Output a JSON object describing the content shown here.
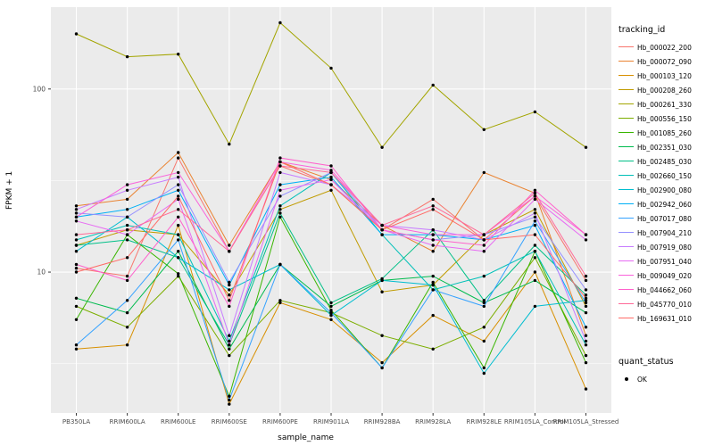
{
  "chart_data": {
    "type": "line",
    "title": "",
    "xlabel": "sample_name",
    "ylabel": "FPKM + 1",
    "y_scale": "log10",
    "y_ticks": [
      10,
      100
    ],
    "ylim": [
      1.7,
      280
    ],
    "panel_bg": "#EBEBEB",
    "grid_color": "#FFFFFF",
    "point_color": "#000000",
    "categories": [
      "PB350LA",
      "RRIM600LA",
      "RRIM600LE",
      "RRIM600SE",
      "RRIM600PE",
      "RRIM901LA",
      "RRIM928BA",
      "RRIM928LA",
      "RRIM928LE",
      "RRIM105LA_Control",
      "RRIM105LA_Stressed"
    ],
    "legend": {
      "title": "tracking_id",
      "position": "right"
    },
    "quant_legend": {
      "title": "quant_status",
      "items": [
        {
          "label": "OK",
          "marker": "black-point"
        }
      ]
    },
    "series": [
      {
        "name": "Hb_000022_200",
        "color": "#F8766D",
        "values": [
          10.5,
          9.5,
          42,
          13,
          38,
          30,
          17,
          25,
          15,
          26,
          9
        ]
      },
      {
        "name": "Hb_000072_090",
        "color": "#EA8331",
        "values": [
          23,
          25,
          45,
          14,
          40,
          32,
          18,
          13,
          35,
          27,
          4.5
        ]
      },
      {
        "name": "Hb_000103_120",
        "color": "#D89000",
        "values": [
          3.8,
          4.0,
          18,
          1.9,
          6.8,
          5.5,
          3.2,
          5.8,
          4.2,
          10,
          2.3
        ]
      },
      {
        "name": "Hb_000208_260",
        "color": "#C09B00",
        "values": [
          14,
          17,
          16,
          7.5,
          22,
          28,
          7.8,
          8.5,
          16,
          22,
          6.5
        ]
      },
      {
        "name": "Hb_000261_330",
        "color": "#A3A500",
        "values": [
          200,
          150,
          155,
          50,
          230,
          130,
          48,
          105,
          60,
          75,
          48
        ]
      },
      {
        "name": "Hb_000556_150",
        "color": "#7CAE00",
        "values": [
          6.5,
          5.0,
          9.5,
          3.5,
          7.0,
          6.0,
          4.5,
          3.8,
          5.0,
          12,
          3.5
        ]
      },
      {
        "name": "Hb_001085_260",
        "color": "#39B600",
        "values": [
          5.5,
          16,
          9.8,
          2.1,
          20,
          6.2,
          3.0,
          8.8,
          3.0,
          13,
          3.2
        ]
      },
      {
        "name": "Hb_002351_030",
        "color": "#00BB4E",
        "values": [
          7.2,
          6.0,
          13,
          3.8,
          11,
          6.5,
          9.0,
          9.5,
          6.8,
          9.0,
          6.0
        ]
      },
      {
        "name": "Hb_002485_030",
        "color": "#00C087",
        "values": [
          14,
          15,
          12,
          4.0,
          21,
          6.8,
          9.2,
          17,
          7.0,
          14,
          7.5
        ]
      },
      {
        "name": "Hb_002660_150",
        "color": "#00C0B8",
        "values": [
          15,
          18,
          16,
          4.2,
          23,
          35,
          16,
          8.0,
          9.5,
          13,
          4.0
        ]
      },
      {
        "name": "Hb_002900_080",
        "color": "#00BDD0",
        "values": [
          13,
          20,
          12,
          8.0,
          11,
          5.8,
          9.0,
          8.5,
          2.8,
          6.5,
          7.0
        ]
      },
      {
        "name": "Hb_002942_060",
        "color": "#00B0F6",
        "values": [
          20,
          22,
          28,
          8.5,
          30,
          33,
          16,
          16,
          15,
          18,
          5.0
        ]
      },
      {
        "name": "Hb_007017_080",
        "color": "#35A2FF",
        "values": [
          4.0,
          7.0,
          15,
          2.0,
          11,
          6.0,
          3.0,
          8.0,
          6.5,
          19,
          6.8
        ]
      },
      {
        "name": "Hb_007904_210",
        "color": "#9590FF",
        "values": [
          21,
          20,
          30,
          8.8,
          26,
          35,
          17,
          15,
          16,
          20,
          8.0
        ]
      },
      {
        "name": "Hb_007919_080",
        "color": "#C77CFF",
        "values": [
          22,
          28,
          33,
          4.5,
          35,
          30,
          18,
          17,
          15,
          21,
          4.2
        ]
      },
      {
        "name": "Hb_007951_040",
        "color": "#E76BF3",
        "values": [
          19,
          16,
          25,
          4.0,
          28,
          32,
          17,
          14,
          13,
          25,
          15
        ]
      },
      {
        "name": "Hb_009049_020",
        "color": "#FA62DB",
        "values": [
          20,
          30,
          35,
          13,
          40,
          36,
          18,
          16,
          16,
          26,
          16
        ]
      },
      {
        "name": "Hb_044662_060",
        "color": "#FF61CC",
        "values": [
          11,
          9.0,
          20,
          6.5,
          42,
          38,
          17,
          15,
          14,
          28,
          16
        ]
      },
      {
        "name": "Hb_045770_010",
        "color": "#FF6A98",
        "values": [
          16,
          17,
          22,
          13,
          38,
          35,
          18,
          23,
          16,
          27,
          9.5
        ]
      },
      {
        "name": "Hb_169631_010",
        "color": "#FF6C67",
        "values": [
          10,
          12,
          26,
          7.0,
          40,
          30,
          17,
          22,
          15,
          16,
          7.2
        ]
      }
    ]
  }
}
